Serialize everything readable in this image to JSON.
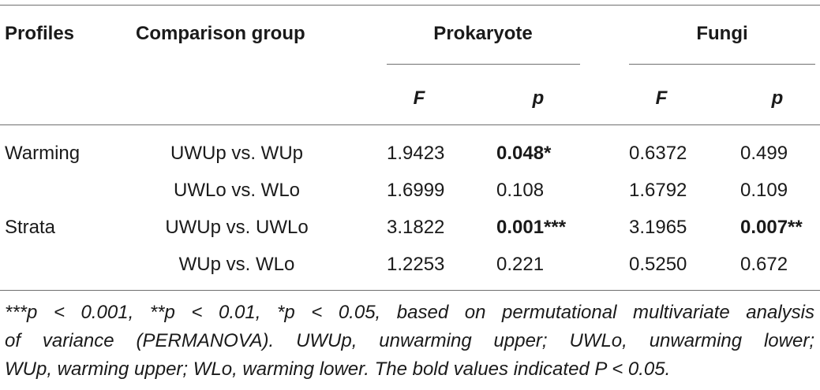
{
  "header": {
    "profiles": "Profiles",
    "comparison_group": "Comparison group",
    "prokaryote": "Prokaryote",
    "fungi": "Fungi",
    "f": "F",
    "p": "p"
  },
  "rows": [
    {
      "profile": "Warming",
      "group": "UWUp vs. WUp",
      "prok_f": "1.9423",
      "prok_p": "0.048*",
      "prok_p_bold": true,
      "fungi_f": "0.6372",
      "fungi_p": "0.499",
      "fungi_p_bold": false
    },
    {
      "profile": "",
      "group": "UWLo vs. WLo",
      "prok_f": "1.6999",
      "prok_p": "0.108",
      "prok_p_bold": false,
      "fungi_f": "1.6792",
      "fungi_p": "0.109",
      "fungi_p_bold": false
    },
    {
      "profile": "Strata",
      "group": "UWUp vs. UWLo",
      "prok_f": "3.1822",
      "prok_p": "0.001***",
      "prok_p_bold": true,
      "fungi_f": "3.1965",
      "fungi_p": "0.007**",
      "fungi_p_bold": true
    },
    {
      "profile": "",
      "group": "WUp vs. WLo",
      "prok_f": "1.2253",
      "prok_p": "0.221",
      "prok_p_bold": false,
      "fungi_f": "0.5250",
      "fungi_p": "0.672",
      "fungi_p_bold": false
    }
  ],
  "footnote": {
    "line1": "***p < 0.001, **p < 0.01, *p < 0.05, based on permutational multivariate analysis",
    "line2": "of variance (PERMANOVA). UWUp, unwarming upper; UWLo, unwarming lower;",
    "line3": "WUp, warming upper; WLo, warming lower. The bold values indicated P < 0.05."
  }
}
